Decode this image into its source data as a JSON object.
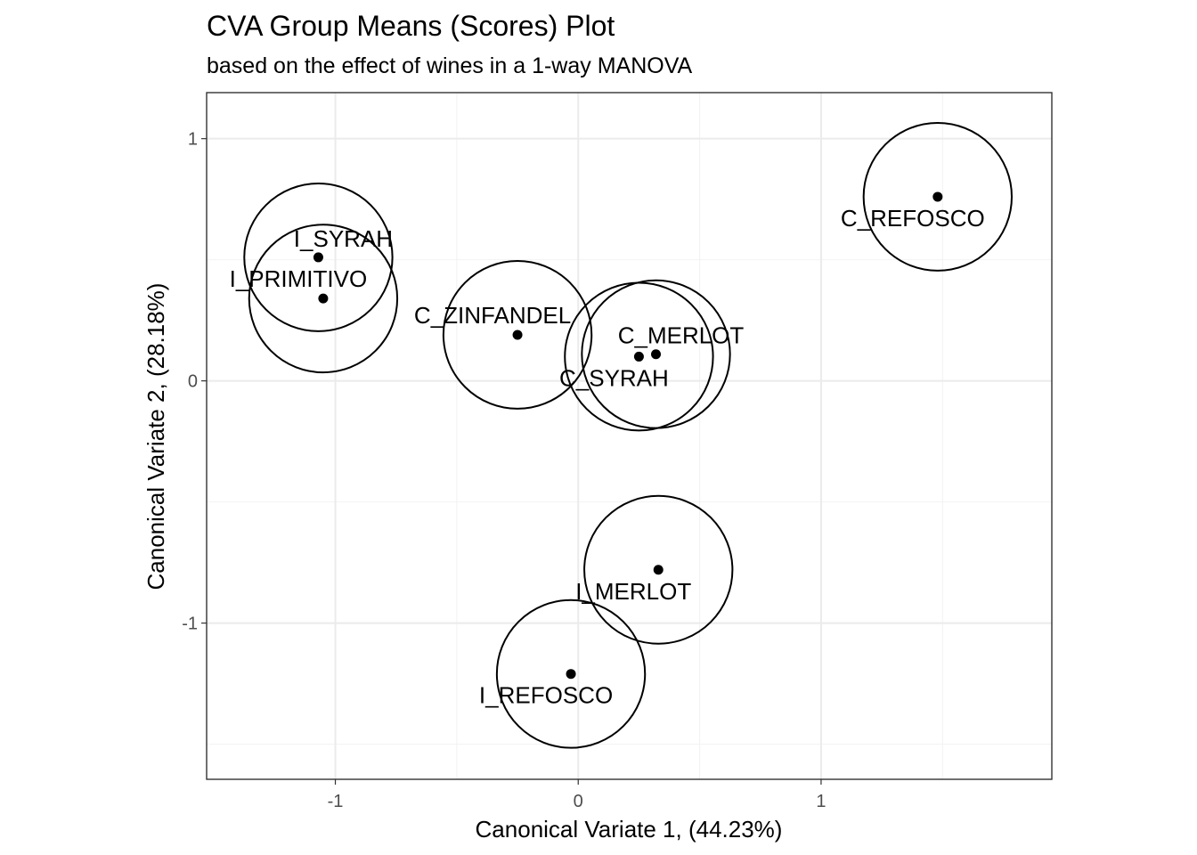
{
  "chart_data": {
    "type": "scatter",
    "title": "CVA Group Means (Scores) Plot",
    "subtitle": "based on the effect of wines in a 1-way MANOVA",
    "xlabel": "Canonical Variate 1, (44.23%)",
    "ylabel": "Canonical Variate 2, (28.18%)",
    "xlim": [
      -1.53,
      1.95
    ],
    "ylim": [
      -1.645,
      1.19
    ],
    "xticks": [
      -1,
      0,
      1
    ],
    "xtick_labels": [
      "-1",
      "0",
      "1"
    ],
    "yticks": [
      -1,
      0,
      1
    ],
    "ytick_labels": [
      "-1",
      "0",
      "1"
    ],
    "x_minor": [
      -0.5,
      0.5,
      1.5
    ],
    "y_minor": [
      -1.5,
      -0.5,
      0.5
    ],
    "grid": true,
    "circle_radius": 0.305,
    "points": [
      {
        "label": "C_REFOSCO",
        "x": 1.48,
        "y": 0.76
      },
      {
        "label": "I_SYRAH",
        "x": -1.07,
        "y": 0.51
      },
      {
        "label": "I_PRIMITIVO",
        "x": -1.05,
        "y": 0.34
      },
      {
        "label": "C_ZINFANDEL",
        "x": -0.25,
        "y": 0.19
      },
      {
        "label": "C_MERLOT",
        "x": 0.32,
        "y": 0.11
      },
      {
        "label": "C_SYRAH",
        "x": 0.25,
        "y": 0.1
      },
      {
        "label": "I_MERLOT",
        "x": 0.33,
        "y": -0.78
      },
      {
        "label": "I_REFOSCO",
        "x": -0.03,
        "y": -1.21
      }
    ]
  }
}
